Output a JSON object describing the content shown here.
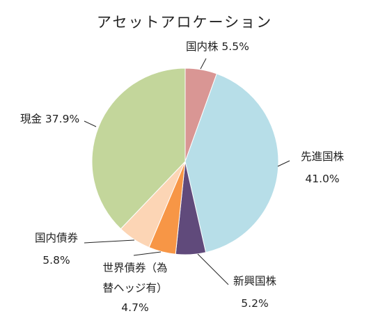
{
  "chart_data": {
    "type": "pie",
    "title": "アセットアロケーション",
    "start": "top",
    "direction": "clockwise",
    "slices": [
      {
        "label_lines": [
          "国内株 5.5%"
        ],
        "value": 5.5,
        "color": "#d99694"
      },
      {
        "label_lines": [
          "先進国株",
          "41.0%"
        ],
        "value": 41.0,
        "color": "#b7dee8"
      },
      {
        "label_lines": [
          "新興国株",
          "5.2%"
        ],
        "value": 5.2,
        "color": "#604a7b"
      },
      {
        "label_lines": [
          "世界債券（為",
          "替ヘッジ有）",
          "4.7%"
        ],
        "value": 4.7,
        "color": "#f79646"
      },
      {
        "label_lines": [
          "国内債券",
          "5.8%"
        ],
        "value": 5.8,
        "color": "#fcd5b5"
      },
      {
        "label_lines": [
          "現金 37.9%"
        ],
        "value": 37.9,
        "color": "#c3d69b"
      }
    ],
    "legend": "none"
  }
}
